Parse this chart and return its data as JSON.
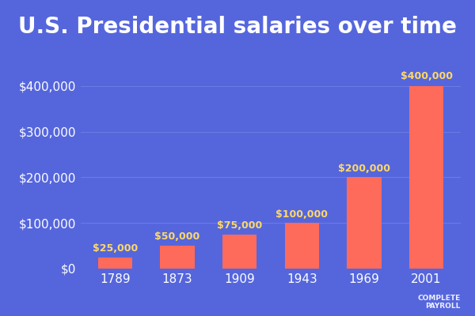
{
  "title": "U.S. Presidential salaries over time",
  "categories": [
    "1789",
    "1873",
    "1909",
    "1943",
    "1969",
    "2001"
  ],
  "values": [
    25000,
    50000,
    75000,
    100000,
    200000,
    400000
  ],
  "bar_color": "#FF6B5B",
  "background_color": "#5566DD",
  "title_color": "#FFFFFF",
  "tick_label_color": "#FFFFFF",
  "grid_color": "#7B8BE8",
  "value_label_color": "#FFD966",
  "ytick_labels": [
    "$0",
    "$100,000",
    "$200,000",
    "$300,000",
    "$400,000"
  ],
  "ytick_values": [
    0,
    100000,
    200000,
    300000,
    400000
  ],
  "ylim": [
    0,
    450000
  ],
  "title_fontsize": 20,
  "tick_fontsize": 11,
  "value_label_fontsize": 9,
  "bar_width": 0.55,
  "watermark_text": "COMPLETE\nPAYROLL",
  "watermark_color": "#FFFFFF",
  "value_offsets": [
    8000,
    8000,
    8000,
    8000,
    8000,
    10000
  ]
}
